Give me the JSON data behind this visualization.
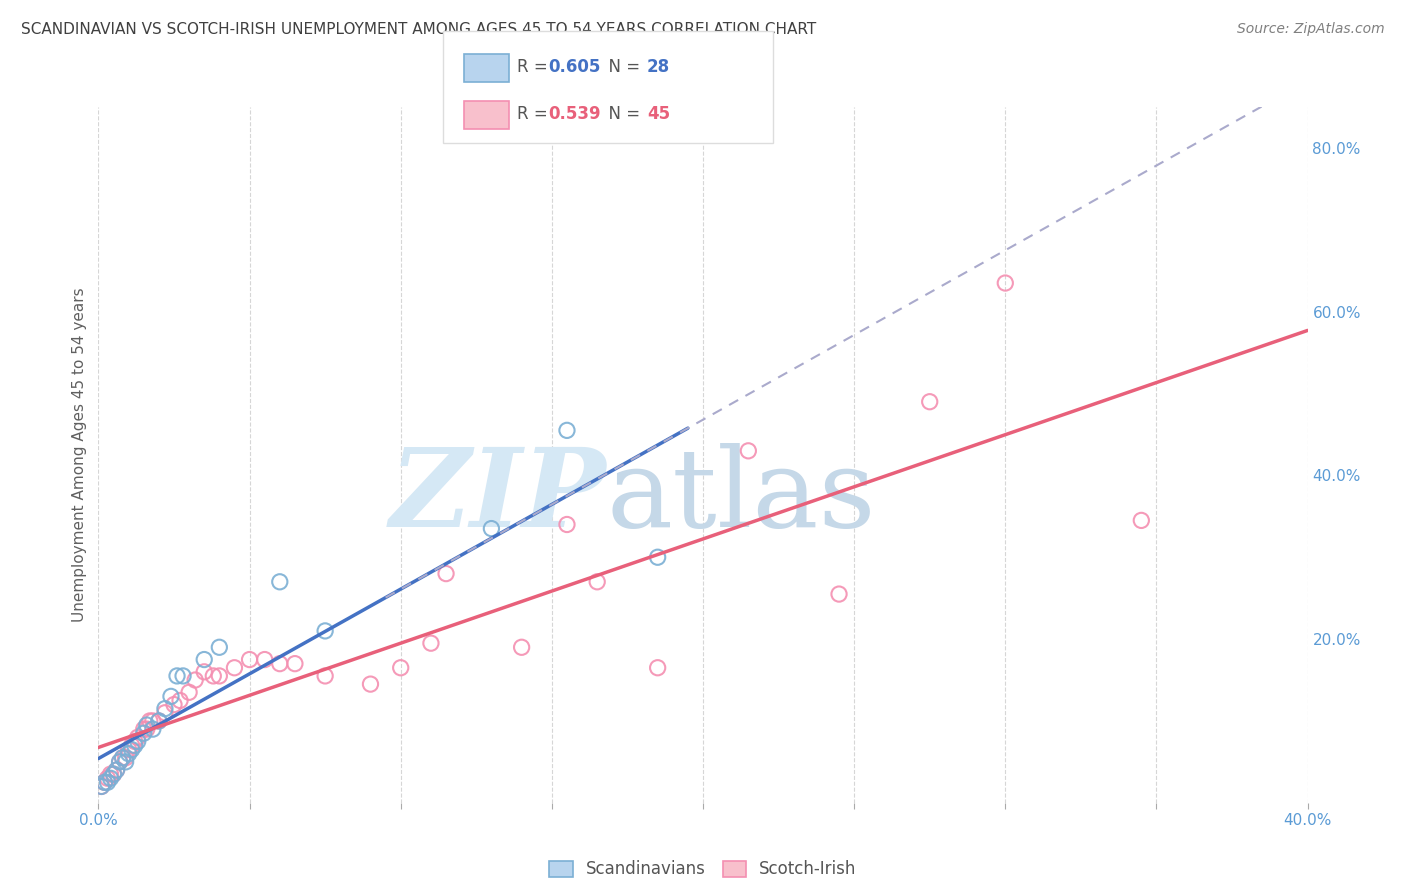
{
  "title": "SCANDINAVIAN VS SCOTCH-IRISH UNEMPLOYMENT AMONG AGES 45 TO 54 YEARS CORRELATION CHART",
  "source": "Source: ZipAtlas.com",
  "ylabel": "Unemployment Among Ages 45 to 54 years",
  "xlim": [
    0.0,
    0.4
  ],
  "ylim": [
    0.0,
    0.85
  ],
  "scandinavian_color": "#7BAFD4",
  "scotchirish_color": "#F48FB1",
  "scandinavian_line_color": "#4472C4",
  "scotchirish_line_color": "#E8607A",
  "dashed_line_color": "#AABBCC",
  "scandinavian_R": "0.605",
  "scandinavian_N": "28",
  "scotchirish_R": "0.539",
  "scotchirish_N": "45",
  "bg_color": "#FFFFFF",
  "grid_color": "#CCCCCC",
  "axis_tick_color": "#5B9BD5",
  "title_color": "#404040",
  "source_color": "#808080",
  "ylabel_color": "#606060",
  "watermark_zip_color": "#D5E8F5",
  "watermark_atlas_color": "#C5D8E8",
  "legend_box_color": "#DDDDDD",
  "x_tick_positions": [
    0.0,
    0.05,
    0.1,
    0.15,
    0.2,
    0.25,
    0.3,
    0.35,
    0.4
  ],
  "x_tick_labels": [
    "0.0%",
    "",
    "",
    "",
    "",
    "",
    "",
    "",
    "40.0%"
  ],
  "y_tick_positions": [
    0.0,
    0.2,
    0.4,
    0.6,
    0.8
  ],
  "y_tick_labels": [
    "",
    "20.0%",
    "40.0%",
    "60.0%",
    "80.0%"
  ],
  "scandinavian_x": [
    0.001,
    0.002,
    0.003,
    0.004,
    0.005,
    0.006,
    0.007,
    0.008,
    0.009,
    0.01,
    0.011,
    0.012,
    0.013,
    0.015,
    0.016,
    0.018,
    0.02,
    0.022,
    0.024,
    0.026,
    0.028,
    0.035,
    0.04,
    0.06,
    0.075,
    0.13,
    0.155,
    0.185
  ],
  "scandinavian_y": [
    0.02,
    0.025,
    0.025,
    0.03,
    0.035,
    0.04,
    0.05,
    0.055,
    0.05,
    0.06,
    0.065,
    0.07,
    0.075,
    0.085,
    0.095,
    0.09,
    0.1,
    0.115,
    0.13,
    0.155,
    0.155,
    0.175,
    0.19,
    0.27,
    0.21,
    0.335,
    0.455,
    0.3
  ],
  "scotchirish_x": [
    0.001,
    0.002,
    0.003,
    0.004,
    0.005,
    0.006,
    0.007,
    0.008,
    0.009,
    0.01,
    0.011,
    0.012,
    0.013,
    0.015,
    0.016,
    0.017,
    0.018,
    0.02,
    0.022,
    0.025,
    0.027,
    0.03,
    0.032,
    0.035,
    0.038,
    0.04,
    0.045,
    0.05,
    0.055,
    0.06,
    0.065,
    0.075,
    0.09,
    0.1,
    0.11,
    0.115,
    0.14,
    0.155,
    0.165,
    0.185,
    0.215,
    0.245,
    0.275,
    0.3,
    0.345
  ],
  "scotchirish_y": [
    0.02,
    0.025,
    0.03,
    0.035,
    0.035,
    0.04,
    0.05,
    0.055,
    0.055,
    0.065,
    0.07,
    0.075,
    0.08,
    0.09,
    0.09,
    0.1,
    0.1,
    0.1,
    0.11,
    0.12,
    0.125,
    0.135,
    0.15,
    0.16,
    0.155,
    0.155,
    0.165,
    0.175,
    0.175,
    0.17,
    0.17,
    0.155,
    0.145,
    0.165,
    0.195,
    0.28,
    0.19,
    0.34,
    0.27,
    0.165,
    0.43,
    0.255,
    0.49,
    0.635,
    0.345
  ],
  "dashed_line_x_start": 0.095,
  "marker_size": 120
}
